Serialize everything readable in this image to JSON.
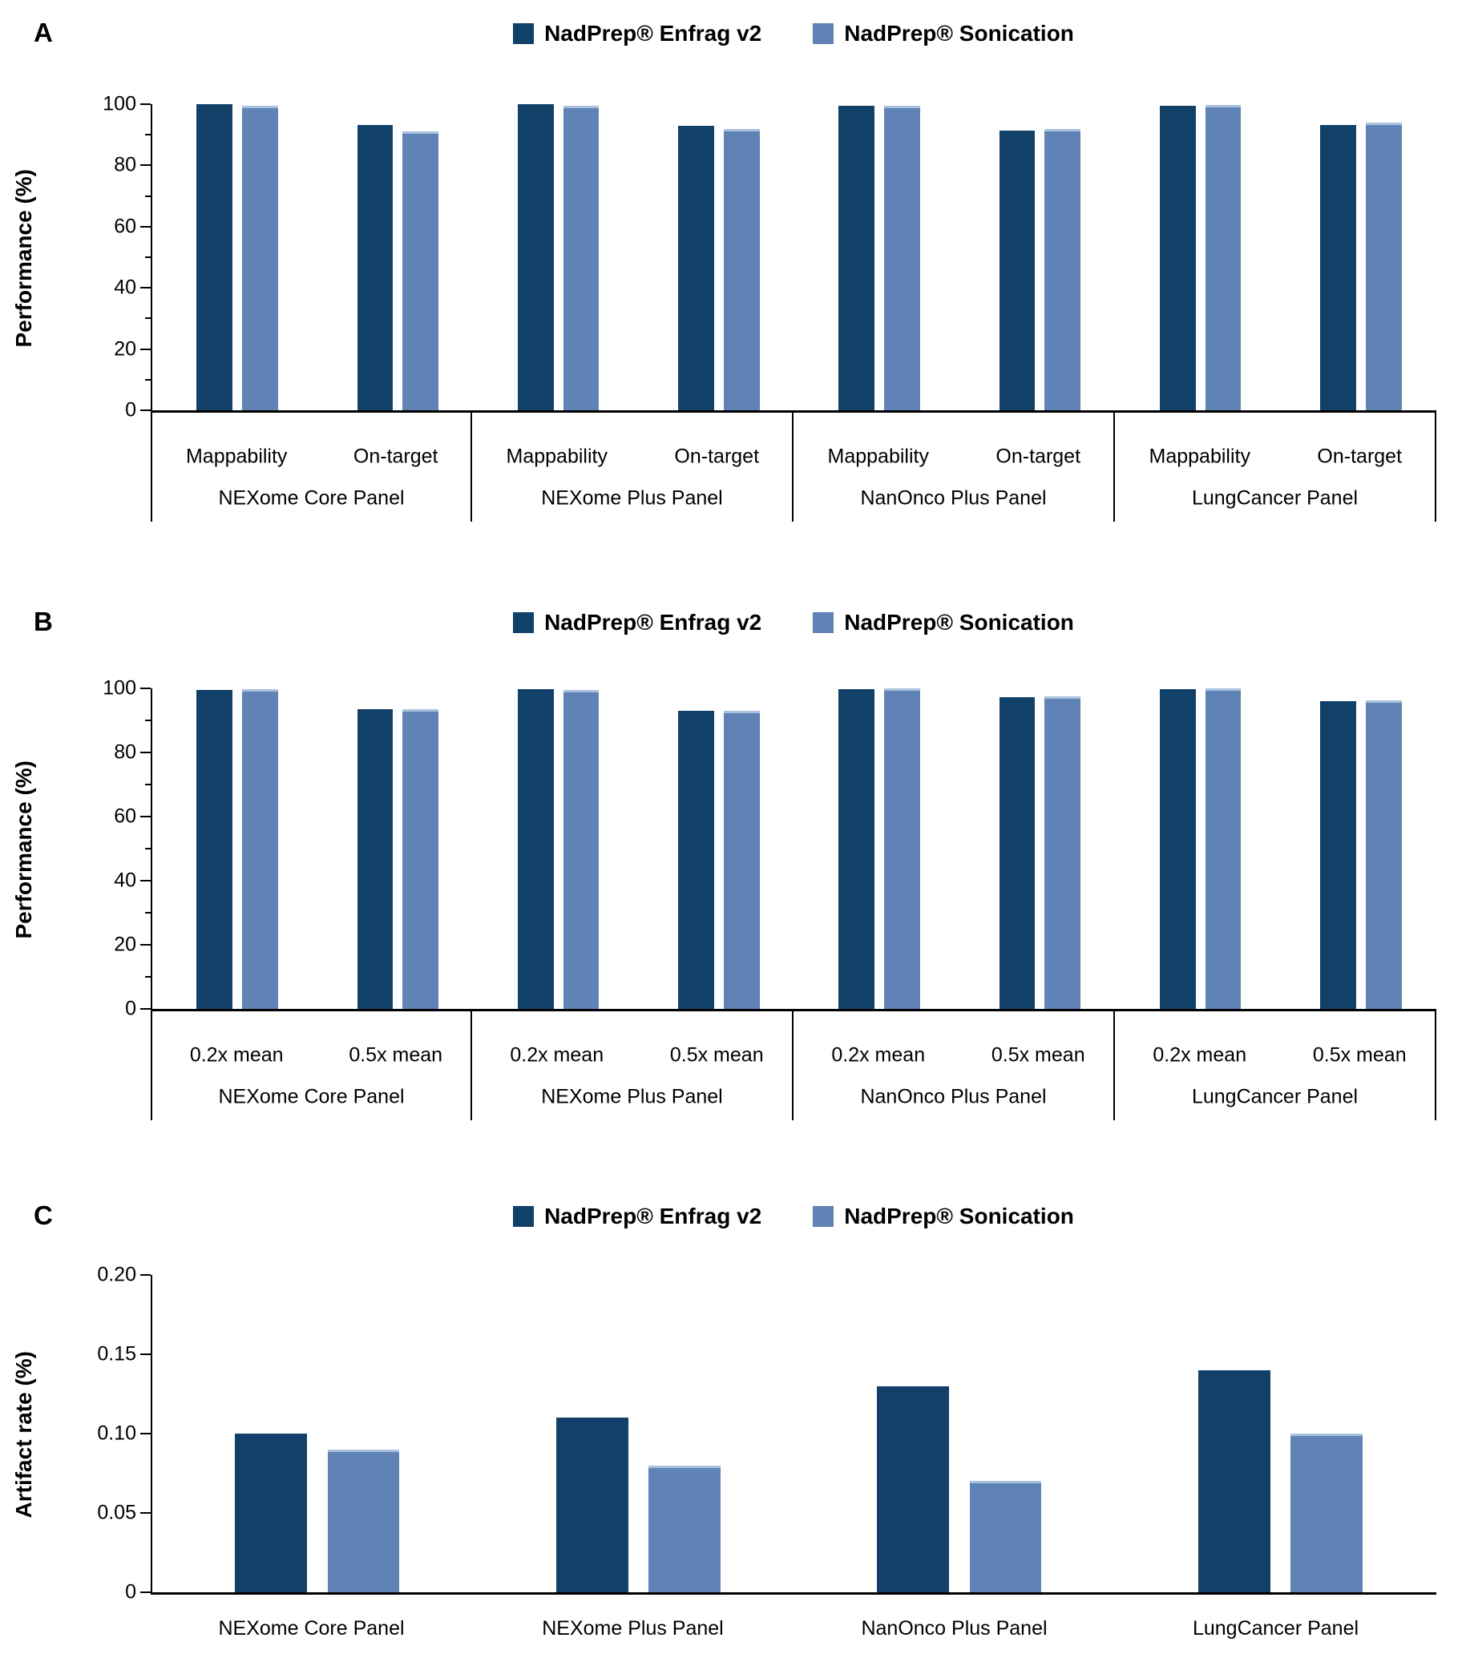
{
  "legend": {
    "items": [
      {
        "label": "NadPrep® Enfrag v2",
        "color": "#114069"
      },
      {
        "label": "NadPrep® Sonication",
        "color": "#5F83B5"
      }
    ]
  },
  "style": {
    "dark_bar_color": "#114069",
    "light_bar_color": "#5F83B5",
    "light_bar_top_edge": "#A9C1DE",
    "axis_color": "#000000"
  },
  "chart_data": [
    {
      "letter": "A",
      "type": "bar",
      "title": "",
      "xlabel": "",
      "ylabel": "Performance (%)",
      "ylim": [
        0,
        100
      ],
      "grid": false,
      "legend_position": "top-center",
      "yticks": [
        {
          "v": 0,
          "label": "0"
        },
        {
          "v": 20,
          "label": "20"
        },
        {
          "v": 40,
          "label": "40"
        },
        {
          "v": 60,
          "label": "60"
        },
        {
          "v": 80,
          "label": "80"
        },
        {
          "v": 100,
          "label": "100"
        }
      ],
      "panels": [
        "NEXome Core Panel",
        "NEXome Plus Panel",
        "NanOnco Plus Panel",
        "LungCancer Panel"
      ],
      "categories": [
        "Mappability",
        "On-target"
      ],
      "series": [
        {
          "name": "NadPrep® Enfrag v2",
          "color": "#114069",
          "values": [
            [
              100,
              93.2
            ],
            [
              99.9,
              92.9
            ],
            [
              99.4,
              91.3
            ],
            [
              99.4,
              93.1
            ]
          ]
        },
        {
          "name": "NadPrep® Sonication",
          "color": "#5F83B5",
          "values": [
            [
              99.4,
              91.2
            ],
            [
              99.6,
              91.8
            ],
            [
              99.6,
              91.8
            ],
            [
              99.7,
              93.9
            ]
          ]
        }
      ]
    },
    {
      "letter": "B",
      "type": "bar",
      "title": "",
      "xlabel": "",
      "ylabel": "Performance (%)",
      "ylim": [
        0,
        100
      ],
      "grid": false,
      "legend_position": "top-center",
      "yticks": [
        {
          "v": 0,
          "label": "0"
        },
        {
          "v": 20,
          "label": "20"
        },
        {
          "v": 40,
          "label": "40"
        },
        {
          "v": 60,
          "label": "60"
        },
        {
          "v": 80,
          "label": "80"
        },
        {
          "v": 100,
          "label": "100"
        }
      ],
      "panels": [
        "NEXome Core Panel",
        "NEXome Plus Panel",
        "NanOnco Plus Panel",
        "LungCancer Panel"
      ],
      "categories": [
        "0.2x mean",
        "0.5x mean"
      ],
      "series": [
        {
          "name": "NadPrep® Enfrag v2",
          "color": "#114069",
          "values": [
            [
              99.5,
              93.5
            ],
            [
              99.7,
              93.1
            ],
            [
              99.8,
              97.3
            ],
            [
              99.8,
              96.0
            ]
          ]
        },
        {
          "name": "NadPrep® Sonication",
          "color": "#5F83B5",
          "values": [
            [
              99.7,
              93.4
            ],
            [
              99.6,
              93.0
            ],
            [
              99.9,
              97.4
            ],
            [
              100,
              96.2
            ]
          ]
        }
      ]
    },
    {
      "letter": "C",
      "type": "bar",
      "title": "",
      "xlabel": "",
      "ylabel": "Artifact rate (%)",
      "ylim": [
        0,
        0.2
      ],
      "grid": false,
      "legend_position": "top-center",
      "yticks": [
        {
          "v": 0,
          "label": "0"
        },
        {
          "v": 0.05,
          "label": "0.05"
        },
        {
          "v": 0.1,
          "label": "0.10"
        },
        {
          "v": 0.15,
          "label": "0.15"
        },
        {
          "v": 0.2,
          "label": "0.20"
        }
      ],
      "panels": [
        "NEXome Core Panel",
        "NEXome Plus Panel",
        "NanOnco Plus Panel",
        "LungCancer Panel"
      ],
      "categories": [],
      "series": [
        {
          "name": "NadPrep® Enfrag v2",
          "color": "#114069",
          "values": [
            [
              0.1
            ],
            [
              0.11
            ],
            [
              0.13
            ],
            [
              0.14
            ]
          ]
        },
        {
          "name": "NadPrep® Sonication",
          "color": "#5F83B5",
          "values": [
            [
              0.09
            ],
            [
              0.08
            ],
            [
              0.07
            ],
            [
              0.1
            ]
          ]
        }
      ]
    }
  ]
}
